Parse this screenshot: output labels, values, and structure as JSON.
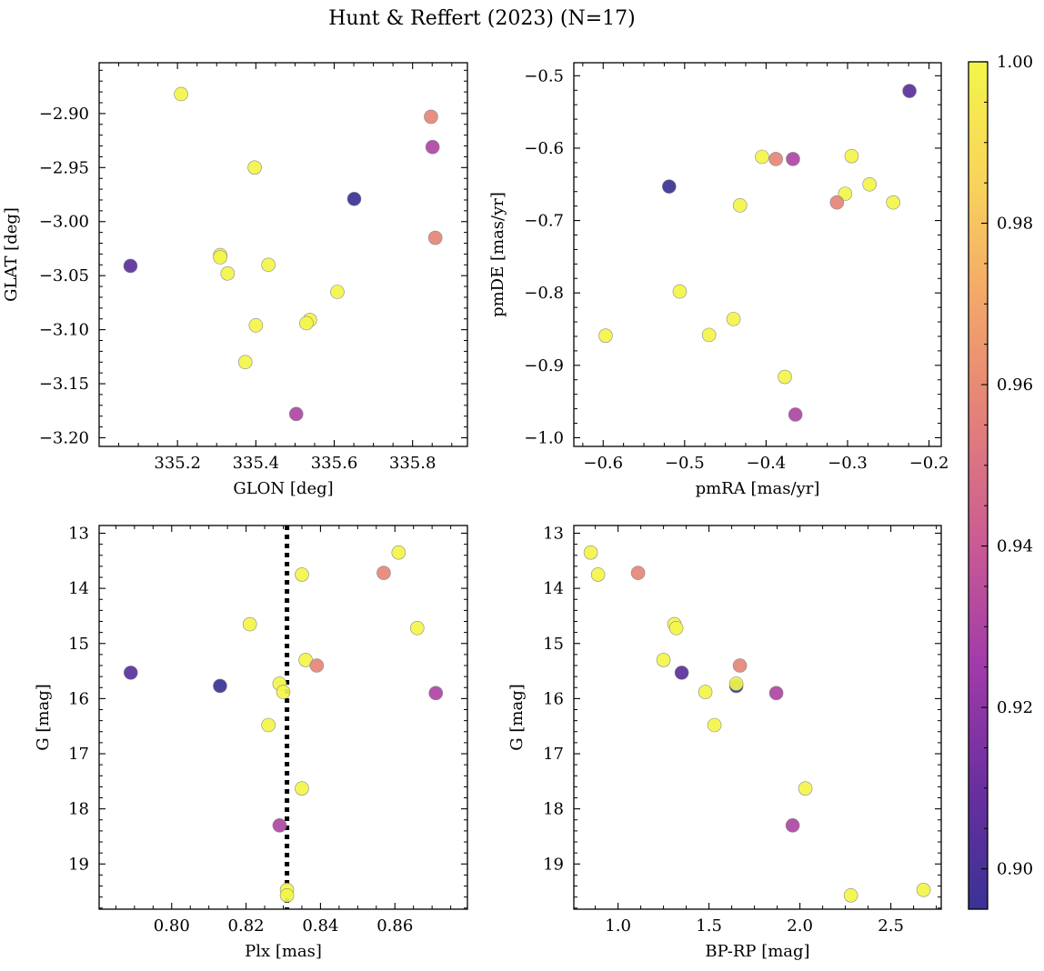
{
  "figure_title": "Hunt & Reffert (2023) (N=17)",
  "colorbar": {
    "min": 0.895,
    "max": 1.0,
    "ticks": [
      0.9,
      0.92,
      0.94,
      0.96,
      0.98,
      1.0
    ],
    "tick_labels": [
      "0.90",
      "0.92",
      "0.94",
      "0.96",
      "0.98",
      "1.00"
    ],
    "colormap": "plasma",
    "colormap_stops": [
      "#3a3295",
      "#6a2f9e",
      "#a03aaa",
      "#c95a94",
      "#e27e7b",
      "#f3a56a",
      "#f9d35b",
      "#f3f54a"
    ]
  },
  "chart_data": [
    {
      "type": "scatter",
      "name": "position",
      "xlabel": "GLON [deg]",
      "ylabel": "GLAT [deg]",
      "xlim": [
        335.0,
        335.94
      ],
      "ylim": [
        -3.208,
        -2.853
      ],
      "xticks": [
        335.2,
        335.4,
        335.6,
        335.8
      ],
      "xtick_labels": [
        "335.2",
        "335.4",
        "335.6",
        "335.8"
      ],
      "yticks": [
        -3.2,
        -3.15,
        -3.1,
        -3.05,
        -3.0,
        -2.95,
        -2.9
      ],
      "ytick_labels": [
        "−3.20",
        "−3.15",
        "−3.10",
        "−3.05",
        "−3.00",
        "−2.95",
        "−2.90"
      ],
      "points": [
        {
          "x": 335.209,
          "y": -2.882,
          "c": 1.0
        },
        {
          "x": 335.847,
          "y": -2.903,
          "c": 0.958
        },
        {
          "x": 335.851,
          "y": -2.931,
          "c": 0.93
        },
        {
          "x": 335.397,
          "y": -2.95,
          "c": 1.0
        },
        {
          "x": 335.651,
          "y": -2.979,
          "c": 0.895
        },
        {
          "x": 335.858,
          "y": -3.015,
          "c": 0.958
        },
        {
          "x": 335.309,
          "y": -3.031,
          "c": 1.0
        },
        {
          "x": 335.309,
          "y": -3.033,
          "c": 1.0
        },
        {
          "x": 335.08,
          "y": -3.041,
          "c": 0.905
        },
        {
          "x": 335.432,
          "y": -3.04,
          "c": 1.0
        },
        {
          "x": 335.328,
          "y": -3.048,
          "c": 1.0
        },
        {
          "x": 335.608,
          "y": -3.065,
          "c": 1.0
        },
        {
          "x": 335.538,
          "y": -3.091,
          "c": 1.0
        },
        {
          "x": 335.529,
          "y": -3.094,
          "c": 1.0
        },
        {
          "x": 335.4,
          "y": -3.096,
          "c": 1.0
        },
        {
          "x": 335.373,
          "y": -3.13,
          "c": 1.0
        },
        {
          "x": 335.503,
          "y": -3.178,
          "c": 0.93
        }
      ]
    },
    {
      "type": "scatter",
      "name": "proper-motion",
      "xlabel": "pmRA [mas/yr]",
      "ylabel": "pmDE [mas/yr]",
      "xlim": [
        -0.636,
        -0.185
      ],
      "ylim": [
        -1.012,
        -0.482
      ],
      "xticks": [
        -0.6,
        -0.5,
        -0.4,
        -0.3,
        -0.2
      ],
      "xtick_labels": [
        "−0.6",
        "−0.5",
        "−0.4",
        "−0.3",
        "−0.2"
      ],
      "yticks": [
        -1.0,
        -0.9,
        -0.8,
        -0.7,
        -0.6,
        -0.5
      ],
      "ytick_labels": [
        "−1.0",
        "−0.9",
        "−0.8",
        "−0.7",
        "−0.6",
        "−0.5"
      ],
      "points": [
        {
          "x": -0.224,
          "y": -0.521,
          "c": 0.905
        },
        {
          "x": -0.405,
          "y": -0.612,
          "c": 1.0
        },
        {
          "x": -0.388,
          "y": -0.615,
          "c": 0.958
        },
        {
          "x": -0.367,
          "y": -0.615,
          "c": 0.93
        },
        {
          "x": -0.295,
          "y": -0.611,
          "c": 1.0
        },
        {
          "x": -0.273,
          "y": -0.65,
          "c": 1.0
        },
        {
          "x": -0.519,
          "y": -0.653,
          "c": 0.895
        },
        {
          "x": -0.303,
          "y": -0.663,
          "c": 1.0
        },
        {
          "x": -0.313,
          "y": -0.675,
          "c": 0.958
        },
        {
          "x": -0.244,
          "y": -0.675,
          "c": 1.0
        },
        {
          "x": -0.432,
          "y": -0.679,
          "c": 1.0
        },
        {
          "x": -0.506,
          "y": -0.798,
          "c": 1.0
        },
        {
          "x": -0.44,
          "y": -0.836,
          "c": 1.0
        },
        {
          "x": -0.597,
          "y": -0.859,
          "c": 1.0
        },
        {
          "x": -0.47,
          "y": -0.858,
          "c": 1.0
        },
        {
          "x": -0.377,
          "y": -0.916,
          "c": 1.0
        },
        {
          "x": -0.364,
          "y": -0.968,
          "c": 0.93
        }
      ]
    },
    {
      "type": "scatter",
      "name": "parallax-magnitude",
      "xlabel": "Plx [mas]",
      "ylabel": "G [mag]",
      "xlim": [
        0.7805,
        0.8795
      ],
      "ylim": [
        19.82,
        12.86
      ],
      "y_inverted": true,
      "xticks": [
        0.8,
        0.82,
        0.84,
        0.86
      ],
      "xtick_labels": [
        "0.80",
        "0.82",
        "0.84",
        "0.86"
      ],
      "yticks": [
        13,
        14,
        15,
        16,
        17,
        18,
        19
      ],
      "ytick_labels": [
        "13",
        "14",
        "15",
        "16",
        "17",
        "18",
        "19"
      ],
      "reference_line": {
        "orientation": "vertical",
        "x": 0.831,
        "style": "dotted",
        "color": "#000000"
      },
      "points": [
        {
          "x": 0.861,
          "y": 13.35,
          "c": 1.0
        },
        {
          "x": 0.857,
          "y": 13.72,
          "c": 0.958
        },
        {
          "x": 0.835,
          "y": 13.75,
          "c": 1.0
        },
        {
          "x": 0.821,
          "y": 14.65,
          "c": 1.0
        },
        {
          "x": 0.866,
          "y": 14.72,
          "c": 1.0
        },
        {
          "x": 0.836,
          "y": 15.3,
          "c": 1.0
        },
        {
          "x": 0.839,
          "y": 15.4,
          "c": 0.958
        },
        {
          "x": 0.789,
          "y": 15.53,
          "c": 0.905
        },
        {
          "x": 0.829,
          "y": 15.73,
          "c": 1.0
        },
        {
          "x": 0.813,
          "y": 15.77,
          "c": 0.895
        },
        {
          "x": 0.83,
          "y": 15.88,
          "c": 1.0
        },
        {
          "x": 0.871,
          "y": 15.9,
          "c": 0.93
        },
        {
          "x": 0.826,
          "y": 16.48,
          "c": 1.0
        },
        {
          "x": 0.835,
          "y": 17.63,
          "c": 1.0
        },
        {
          "x": 0.829,
          "y": 18.3,
          "c": 0.93
        },
        {
          "x": 0.831,
          "y": 19.47,
          "c": 1.0
        },
        {
          "x": 0.831,
          "y": 19.57,
          "c": 1.0
        }
      ]
    },
    {
      "type": "scatter",
      "name": "color-magnitude",
      "xlabel": "BP-RP [mag]",
      "ylabel": "G [mag]",
      "xlim": [
        0.757,
        2.777
      ],
      "ylim": [
        19.82,
        12.86
      ],
      "y_inverted": true,
      "xticks": [
        1.0,
        1.5,
        2.0,
        2.5
      ],
      "xtick_labels": [
        "1.0",
        "1.5",
        "2.0",
        "2.5"
      ],
      "yticks": [
        13,
        14,
        15,
        16,
        17,
        18,
        19
      ],
      "ytick_labels": [
        "13",
        "14",
        "15",
        "16",
        "17",
        "18",
        "19"
      ],
      "points": [
        {
          "x": 0.85,
          "y": 13.35,
          "c": 1.0
        },
        {
          "x": 0.89,
          "y": 13.75,
          "c": 1.0
        },
        {
          "x": 1.11,
          "y": 13.72,
          "c": 0.958
        },
        {
          "x": 1.31,
          "y": 14.65,
          "c": 1.0
        },
        {
          "x": 1.32,
          "y": 14.72,
          "c": 1.0
        },
        {
          "x": 1.25,
          "y": 15.3,
          "c": 1.0
        },
        {
          "x": 1.67,
          "y": 15.4,
          "c": 0.958
        },
        {
          "x": 1.35,
          "y": 15.53,
          "c": 0.905
        },
        {
          "x": 1.65,
          "y": 15.77,
          "c": 0.895
        },
        {
          "x": 1.65,
          "y": 15.73,
          "c": 1.0
        },
        {
          "x": 1.48,
          "y": 15.88,
          "c": 1.0
        },
        {
          "x": 1.87,
          "y": 15.9,
          "c": 0.93
        },
        {
          "x": 1.53,
          "y": 16.48,
          "c": 1.0
        },
        {
          "x": 2.03,
          "y": 17.63,
          "c": 1.0
        },
        {
          "x": 1.96,
          "y": 18.3,
          "c": 0.93
        },
        {
          "x": 2.28,
          "y": 19.57,
          "c": 1.0
        },
        {
          "x": 2.68,
          "y": 19.47,
          "c": 1.0
        }
      ]
    }
  ]
}
